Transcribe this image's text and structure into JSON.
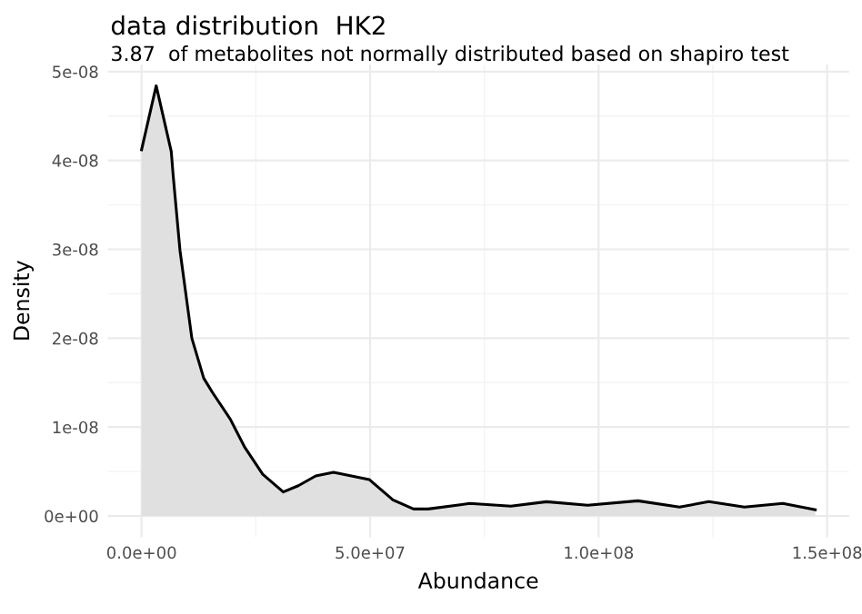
{
  "chart_data": {
    "type": "area",
    "title": "data distribution  HK2",
    "subtitle": "3.87  of metabolites not normally distributed based on shapiro test",
    "xlabel": "Abundance",
    "ylabel": "Density",
    "x": [
      0,
      3200000,
      6500000,
      6900000,
      8400000,
      11000000,
      13600000,
      15500000,
      19400000,
      22600000,
      26500000,
      31000000,
      34300000,
      38100000,
      42000000,
      45900000,
      49800000,
      55000000,
      59500000,
      62700000,
      71800000,
      80800000,
      88600000,
      97600000,
      108600000,
      117700000,
      124100000,
      131900000,
      140300000,
      147400000
    ],
    "series": [
      {
        "color": "#e0e0e0",
        "values": [
          4.12e-08,
          4.84e-08,
          4.1e-08,
          3.84e-08,
          2.99e-08,
          2e-08,
          1.55e-08,
          1.39e-08,
          1.09e-08,
          7.7e-09,
          4.7e-09,
          2.7e-09,
          3.4e-09,
          4.5e-09,
          4.9e-09,
          4.5e-09,
          4.1e-09,
          1.8e-09,
          7.8e-10,
          7.8e-10,
          1.4e-09,
          1.1e-09,
          1.6e-09,
          1.2e-09,
          1.7e-09,
          1e-09,
          1.6e-09,
          1e-09,
          1.4e-09,
          7e-10
        ]
      }
    ],
    "xlim": [
      -7400000,
      154800000
    ],
    "ylim": [
      -2.4e-09,
      5.08e-08
    ],
    "xticks": [
      {
        "value": 0,
        "label": "0.0e+00"
      },
      {
        "value": 50000000,
        "label": "5.0e+07"
      },
      {
        "value": 100000000,
        "label": "1.0e+08"
      },
      {
        "value": 150000000,
        "label": "1.5e+08"
      }
    ],
    "yticks": [
      {
        "value": 0,
        "label": "0e+00"
      },
      {
        "value": 1e-08,
        "label": "1e-08"
      },
      {
        "value": 2e-08,
        "label": "2e-08"
      },
      {
        "value": 3e-08,
        "label": "3e-08"
      },
      {
        "value": 4e-08,
        "label": "4e-08"
      },
      {
        "value": 5e-08,
        "label": "5e-08"
      }
    ],
    "grid": true
  }
}
